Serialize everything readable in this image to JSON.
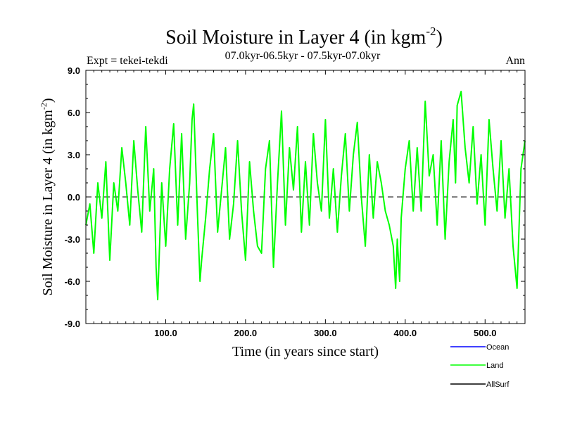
{
  "chart_data": {
    "type": "line",
    "title": "Soil Moisture in Layer 4 (in kgm",
    "title_superscript": "-2",
    "title_close": ")",
    "subtitle": "07.0kyr-06.5kyr - 07.5kyr-07.0kyr",
    "experiment_label": "Expt = tekei-tekdi",
    "period_label": "Ann",
    "xlabel": "Time (in years since start)",
    "ylabel": "Soil Moisture in Layer 4 (in kgm",
    "ylabel_superscript": "-2",
    "ylabel_close": ")",
    "xlim": [
      0,
      550
    ],
    "ylim": [
      -9,
      9
    ],
    "x_ticks": [
      100,
      200,
      300,
      400,
      500
    ],
    "x_tick_labels": [
      "100.0",
      "200.0",
      "300.0",
      "400.0",
      "500.0"
    ],
    "y_ticks": [
      -9,
      -6,
      -3,
      0,
      3,
      6,
      9
    ],
    "y_tick_labels": [
      "-9.0",
      "-6.0",
      "-3.0",
      "0.0",
      "3.0",
      "6.0",
      "9.0"
    ],
    "zero_line": "dashed",
    "legend_position": "bottom-right, outside plot",
    "series": [
      {
        "name": "Ocean",
        "color": "#0000ff",
        "values": []
      },
      {
        "name": "Land",
        "color": "#00ff00",
        "x": [
          0,
          5,
          10,
          15,
          20,
          25,
          30,
          35,
          40,
          45,
          50,
          55,
          60,
          65,
          70,
          75,
          80,
          85,
          88,
          90,
          95,
          100,
          105,
          110,
          115,
          120,
          125,
          130,
          133,
          135,
          140,
          143,
          145,
          150,
          155,
          160,
          165,
          170,
          175,
          180,
          185,
          190,
          195,
          200,
          205,
          210,
          215,
          220,
          225,
          230,
          235,
          240,
          245,
          250,
          255,
          260,
          265,
          270,
          275,
          280,
          285,
          290,
          295,
          300,
          305,
          310,
          315,
          320,
          325,
          330,
          335,
          340,
          345,
          350,
          355,
          360,
          365,
          370,
          375,
          380,
          385,
          388,
          390,
          393,
          395,
          400,
          405,
          410,
          415,
          420,
          425,
          430,
          435,
          440,
          445,
          450,
          455,
          460,
          463,
          465,
          470,
          475,
          480,
          485,
          490,
          495,
          500,
          505,
          510,
          515,
          520,
          525,
          530,
          535,
          540,
          545,
          550
        ],
        "values": [
          -2.0,
          -0.5,
          -4.0,
          1.0,
          -1.5,
          2.5,
          -4.5,
          1.0,
          -1.0,
          3.5,
          1.0,
          -2.0,
          4.0,
          0.5,
          -2.5,
          5.0,
          -1.0,
          2.0,
          -5.0,
          -7.3,
          1.0,
          -3.5,
          2.0,
          5.2,
          -2.0,
          4.5,
          -3.0,
          1.0,
          5.5,
          6.6,
          -1.5,
          -6.0,
          -4.5,
          -1.5,
          2.0,
          4.5,
          -2.5,
          0.5,
          3.5,
          -3.0,
          -0.5,
          4.0,
          -1.0,
          -4.5,
          2.5,
          -1.0,
          -3.5,
          -4.0,
          2.0,
          4.0,
          -5.0,
          1.0,
          6.1,
          -2.0,
          3.5,
          0.5,
          5.0,
          -2.5,
          2.5,
          -2.0,
          4.5,
          1.0,
          -1.0,
          5.5,
          -1.5,
          2.0,
          -2.5,
          1.5,
          4.5,
          -1.0,
          3.0,
          5.3,
          0.0,
          -3.5,
          3.0,
          -1.5,
          2.5,
          1.0,
          -1.0,
          -2.0,
          -3.5,
          -6.5,
          -3.0,
          -6.0,
          -1.5,
          2.0,
          4.0,
          -1.0,
          3.5,
          -1.0,
          6.8,
          1.5,
          3.0,
          -2.0,
          4.0,
          -3.0,
          2.5,
          5.5,
          1.0,
          6.5,
          7.5,
          3.5,
          1.0,
          5.0,
          -0.5,
          3.0,
          -2.0,
          5.5,
          2.0,
          -1.0,
          4.0,
          -1.5,
          2.0,
          -3.5,
          -6.5,
          2.0,
          4.0
        ]
      },
      {
        "name": "AllSurf",
        "color": "#000000",
        "values": []
      }
    ]
  }
}
